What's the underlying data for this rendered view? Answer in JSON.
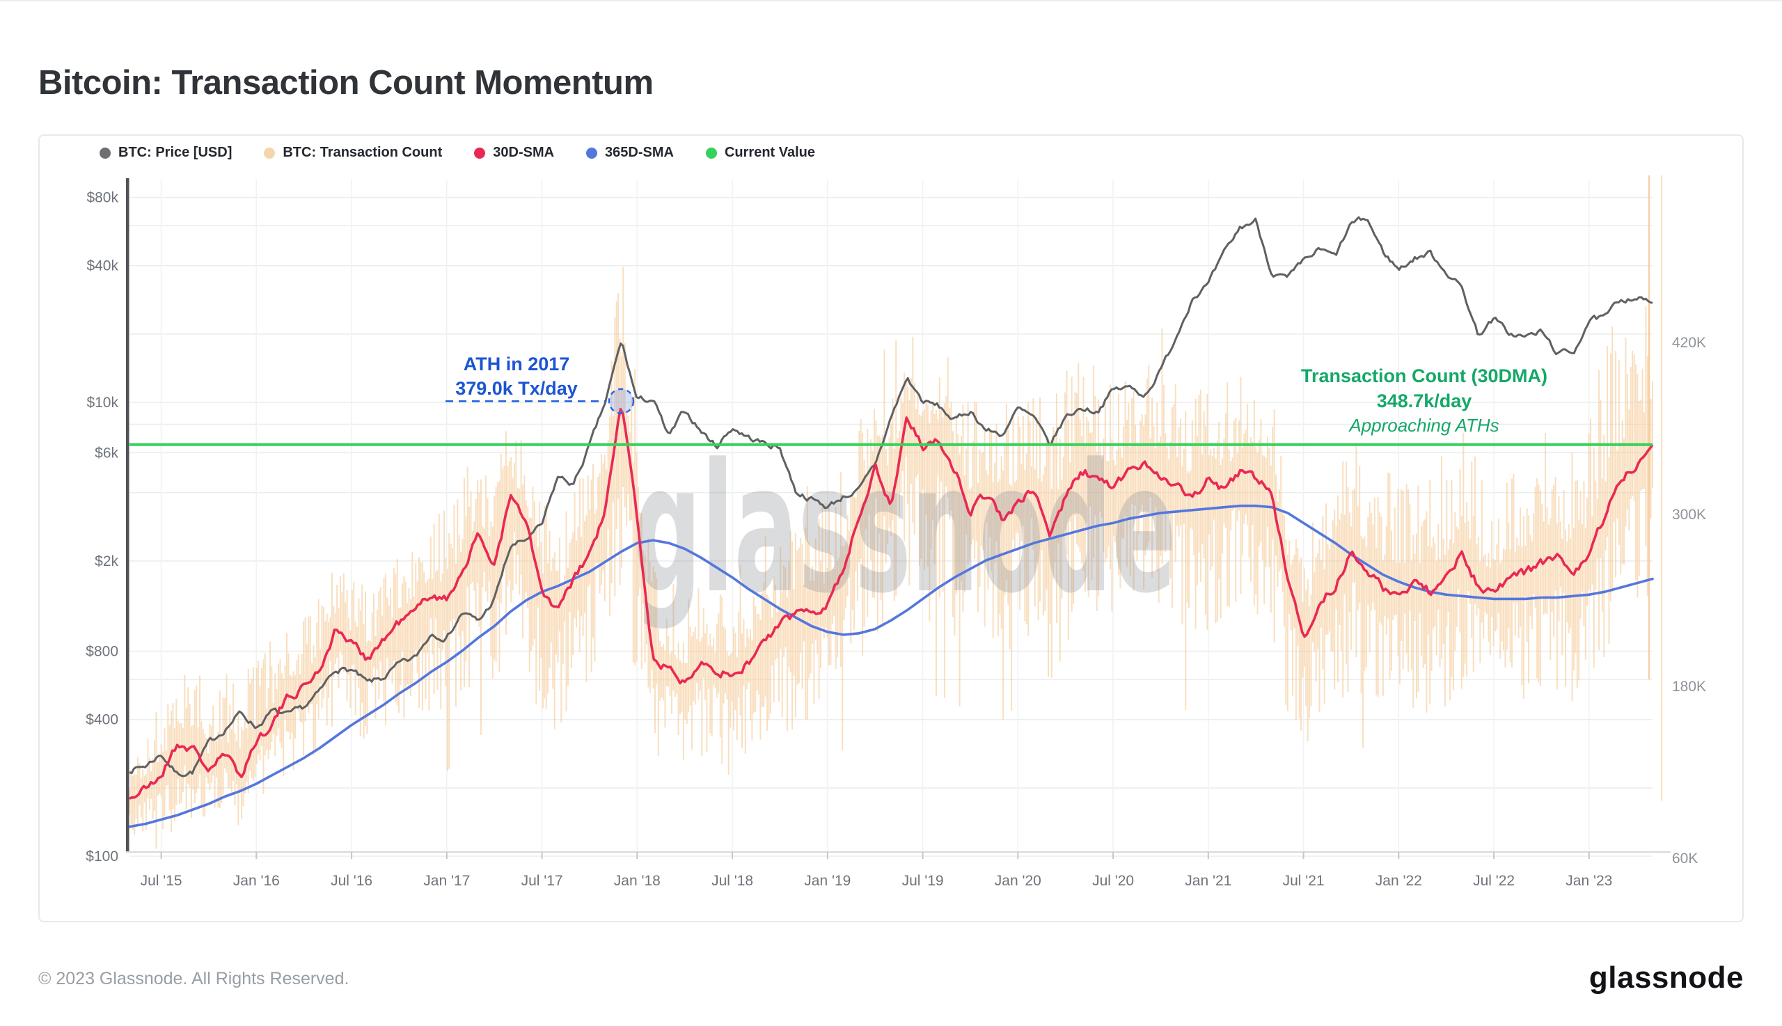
{
  "page": {
    "title": "Bitcoin: Transaction Count Momentum",
    "footer_copyright": "© 2023 Glassnode. All Rights Reserved.",
    "brand_logo": "glassnode",
    "watermark": "glassnode"
  },
  "legend": {
    "items": [
      {
        "label": "BTC: Price [USD]",
        "color": "#6d6f73"
      },
      {
        "label": "BTC: Transaction Count",
        "color": "#f6d4ac"
      },
      {
        "label": "30D-SMA",
        "color": "#e92953"
      },
      {
        "label": "365D-SMA",
        "color": "#5477dd"
      },
      {
        "label": "Current Value",
        "color": "#34d15b"
      }
    ]
  },
  "annotations": {
    "ath": {
      "line1": "ATH in 2017",
      "line2": "379.0k Tx/day",
      "value_k_per_day": 379.0,
      "marker_month": "2017-12",
      "text_color": "#1b55d3",
      "line_color": "#2763e0"
    },
    "current": {
      "line1": "Transaction Count (30DMA)",
      "line2": "348.7k/day",
      "line3": "Approaching ATHs",
      "value_k_per_day": 348.7,
      "text_color": "#15a868",
      "line_color": "#34d15b"
    }
  },
  "axes": {
    "left": {
      "unit": "USD (log scale)",
      "ticks": [
        {
          "v": 80000,
          "label": "$80k"
        },
        {
          "v": 40000,
          "label": "$40k"
        },
        {
          "v": 10000,
          "label": "$10k"
        },
        {
          "v": 6000,
          "label": "$6k"
        },
        {
          "v": 2000,
          "label": "$2k"
        },
        {
          "v": 800,
          "label": "$800"
        },
        {
          "v": 400,
          "label": "$400"
        },
        {
          "v": 100,
          "label": "$100"
        }
      ],
      "grid_values": [
        100,
        200,
        400,
        600,
        800,
        2000,
        4000,
        6000,
        8000,
        10000,
        20000,
        40000,
        60000,
        80000
      ]
    },
    "right": {
      "unit": "transactions per day (thousands, linear)",
      "ticks": [
        {
          "v": 420,
          "label": "420K"
        },
        {
          "v": 300,
          "label": "300K"
        },
        {
          "v": 180,
          "label": "180K"
        },
        {
          "v": 60,
          "label": "60K"
        }
      ]
    },
    "x": {
      "tick_labels": [
        "Jul '15",
        "Jan '16",
        "Jul '16",
        "Jan '17",
        "Jul '17",
        "Jan '18",
        "Jul '18",
        "Jan '19",
        "Jul '19",
        "Jan '20",
        "Jul '20",
        "Jan '21",
        "Jul '21",
        "Jan '22",
        "Jul '22",
        "Jan '23"
      ],
      "first_tick_month_index": 2,
      "step_months": 6
    }
  },
  "chart_data": {
    "type": "mixed-timeseries",
    "title": "Bitcoin: Transaction Count Momentum",
    "x_range": [
      "2015-05",
      "2023-05"
    ],
    "interval": "monthly",
    "months_count": 97,
    "left_axis": {
      "scale": "log",
      "ylim_usd": [
        100,
        80000
      ]
    },
    "right_axis": {
      "scale": "linear",
      "ylim_k_per_day": [
        60,
        420
      ]
    },
    "grid": true,
    "legend_position": "top",
    "series": [
      {
        "name": "BTC: Price [USD]",
        "type": "line",
        "axis": "left",
        "color": "#5f6062",
        "values_usd": [
          240,
          250,
          282,
          230,
          236,
          315,
          362,
          430,
          370,
          435,
          416,
          452,
          530,
          672,
          660,
          578,
          610,
          700,
          745,
          960,
          920,
          1190,
          1080,
          1350,
          2300,
          2480,
          2870,
          4700,
          4340,
          6450,
          10000,
          18600,
          10200,
          10300,
          7000,
          9250,
          7500,
          6400,
          7750,
          7000,
          6600,
          6300,
          4050,
          3740,
          3460,
          3850,
          4100,
          5320,
          8560,
          12800,
          10100,
          9600,
          8300,
          9200,
          7550,
          7200,
          9350,
          8550,
          6440,
          8620,
          9450,
          9140,
          11350,
          11650,
          10780,
          13800,
          19700,
          29000,
          33100,
          45100,
          58800,
          63200,
          37300,
          35000,
          41500,
          47100,
          43800,
          61300,
          64400,
          46200,
          38500,
          43200,
          45500,
          37700,
          31800,
          19900,
          23300,
          20050,
          19400,
          20500,
          16500,
          16550,
          23100,
          23500,
          28500,
          29200,
          27400
        ]
      },
      {
        "name": "BTC: Transaction Count",
        "type": "daily-range-bars",
        "axis": "right",
        "color": "#f5cb9a",
        "band_low_k": [
          55,
          68,
          62,
          70,
          66,
          90,
          86,
          80,
          100,
          110,
          120,
          125,
          135,
          150,
          140,
          140,
          145,
          150,
          155,
          160,
          150,
          170,
          185,
          170,
          200,
          195,
          150,
          150,
          165,
          180,
          195,
          235,
          160,
          128,
          125,
          112,
          130,
          122,
          116,
          130,
          136,
          144,
          150,
          155,
          155,
          170,
          190,
          210,
          230,
          240,
          225,
          215,
          215,
          192,
          200,
          195,
          210,
          215,
          180,
          205,
          220,
          215,
          210,
          220,
          225,
          215,
          210,
          200,
          215,
          205,
          215,
          210,
          200,
          160,
          128,
          155,
          162,
          175,
          170,
          160,
          160,
          165,
          160,
          165,
          175,
          165,
          160,
          165,
          170,
          175,
          175,
          165,
          180,
          200,
          220,
          230,
          240
        ],
        "band_high_k": [
          128,
          148,
          182,
          172,
          216,
          172,
          196,
          188,
          200,
          215,
          228,
          236,
          246,
          268,
          256,
          250,
          260,
          270,
          280,
          295,
          310,
          330,
          348,
          330,
          374,
          356,
          310,
          300,
          320,
          340,
          376,
          488,
          390,
          268,
          254,
          246,
          256,
          246,
          240,
          264,
          270,
          282,
          300,
          306,
          310,
          336,
          366,
          400,
          430,
          446,
          420,
          430,
          410,
          380,
          386,
          380,
          390,
          398,
          384,
          400,
          414,
          406,
          400,
          410,
          416,
          410,
          400,
          394,
          410,
          400,
          412,
          406,
          398,
          330,
          288,
          320,
          330,
          350,
          346,
          330,
          334,
          340,
          336,
          344,
          360,
          340,
          334,
          344,
          350,
          356,
          360,
          344,
          370,
          420,
          460,
          490,
          520
        ],
        "recent_spikes_k": [
          {
            "top": 548,
            "low": 185
          },
          {
            "top": 560,
            "low": 100
          }
        ]
      },
      {
        "name": "30D-SMA",
        "type": "line",
        "axis": "right",
        "color": "#e92953",
        "values_k": [
          102,
          108,
          118,
          140,
          136,
          122,
          132,
          118,
          142,
          155,
          172,
          180,
          192,
          220,
          210,
          200,
          212,
          225,
          232,
          245,
          240,
          262,
          285,
          265,
          312,
          295,
          245,
          232,
          255,
          272,
          302,
          379,
          298,
          198,
          192,
          182,
          200,
          192,
          186,
          196,
          212,
          222,
          232,
          232,
          238,
          262,
          298,
          335,
          305,
          368,
          348,
          352,
          332,
          302,
          315,
          298,
          306,
          318,
          286,
          312,
          330,
          326,
          318,
          330,
          336,
          328,
          320,
          310,
          326,
          316,
          330,
          326,
          316,
          256,
          212,
          238,
          250,
          272,
          262,
          248,
          245,
          252,
          246,
          256,
          272,
          250,
          246,
          256,
          260,
          266,
          270,
          256,
          272,
          300,
          326,
          334,
          348.7
        ]
      },
      {
        "name": "365D-SMA",
        "type": "line",
        "axis": "right",
        "color": "#5477dd",
        "values_k": [
          82,
          84,
          87,
          90,
          94,
          98,
          103,
          107,
          112,
          118,
          124,
          130,
          137,
          145,
          153,
          160,
          167,
          175,
          182,
          190,
          197,
          205,
          214,
          222,
          232,
          240,
          246,
          250,
          255,
          260,
          267,
          274,
          280,
          282,
          280,
          276,
          270,
          263,
          256,
          248,
          241,
          234,
          228,
          222,
          218,
          216,
          217,
          220,
          226,
          233,
          241,
          249,
          256,
          262,
          268,
          272,
          276,
          280,
          283,
          286,
          289,
          292,
          294,
          297,
          299,
          301,
          302,
          303,
          304,
          305,
          306,
          306,
          305,
          301,
          294,
          287,
          280,
          272,
          265,
          258,
          253,
          249,
          246,
          244,
          243,
          242,
          241,
          241,
          241,
          242,
          242,
          243,
          244,
          246,
          249,
          252,
          255
        ]
      },
      {
        "name": "Current Value",
        "type": "hline",
        "axis": "right",
        "color": "#34d15b",
        "value_k": 348.7
      }
    ]
  }
}
